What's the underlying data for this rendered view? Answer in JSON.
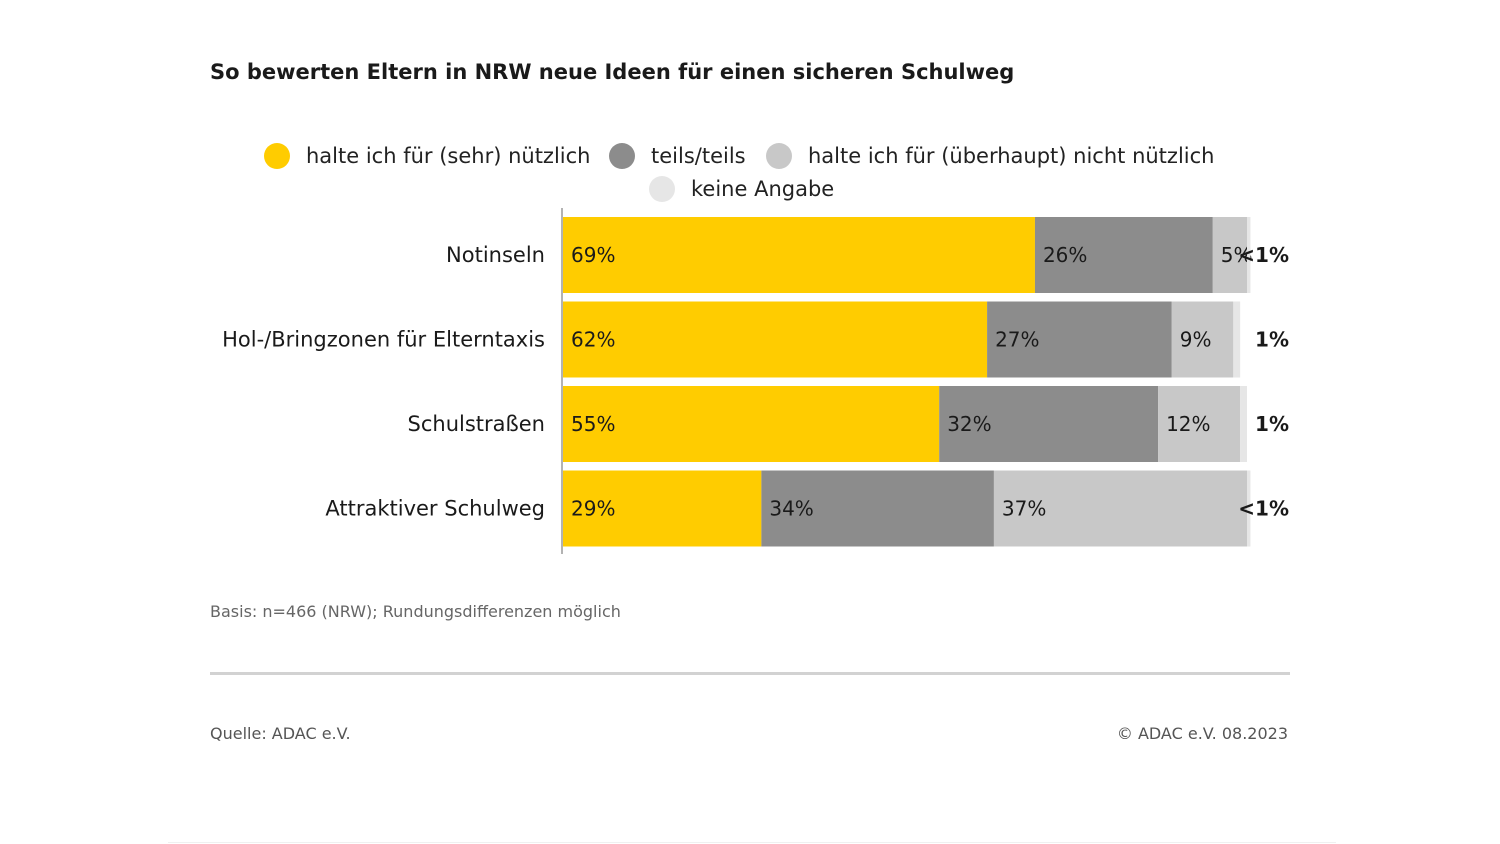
{
  "chart_data": {
    "type": "bar",
    "orientation": "horizontal",
    "stacked": true,
    "title": "So bewerten Eltern in NRW neue Ideen für einen sicheren Schulweg",
    "categories": [
      "Notinseln",
      "Hol-/Bringzonen für Elterntaxis",
      "Schulstraßen",
      "Attraktiver Schulweg"
    ],
    "series": [
      {
        "name": "halte ich für (sehr) nützlich",
        "color": "#FFCC00",
        "values": [
          69,
          62,
          55,
          29
        ],
        "labels": [
          "69%",
          "62%",
          "55%",
          "29%"
        ]
      },
      {
        "name": "teils/teils",
        "color": "#8C8C8C",
        "values": [
          26,
          27,
          32,
          34
        ],
        "labels": [
          "26%",
          "27%",
          "32%",
          "34%"
        ]
      },
      {
        "name": "halte ich für (überhaupt) nicht nützlich",
        "color": "#C8C8C8",
        "values": [
          5,
          9,
          12,
          37
        ],
        "labels": [
          "5%",
          "9%",
          "12%",
          "37%"
        ]
      },
      {
        "name": "keine Angabe",
        "color": "#E6E6E6",
        "values": [
          0.5,
          1,
          1,
          0.5
        ],
        "labels": [
          "<1%",
          "1%",
          "1%",
          "<1%"
        ]
      }
    ],
    "xlim": [
      0,
      100
    ],
    "legend_position": "top",
    "grid": false,
    "note": "Basis: n=466 (NRW); Rundungsdifferenzen möglich"
  },
  "footer": {
    "source": "Quelle: ADAC e.V.",
    "copyright": "© ADAC e.V. 08.2023"
  }
}
